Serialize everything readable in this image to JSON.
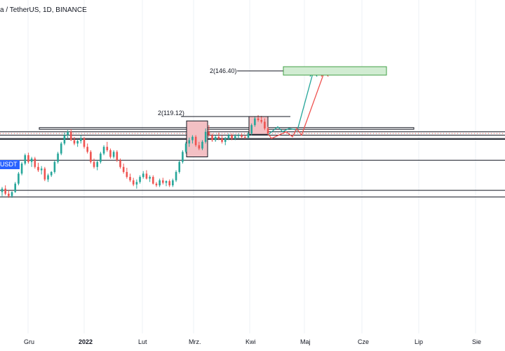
{
  "header": {
    "title": "a / TetherUS, 1D, BINANCE"
  },
  "price_tag": "USDT",
  "chart_data": {
    "type": "candlestick",
    "x_tick_labels": [
      "Gru",
      "2022",
      "Lut",
      "Mrz.",
      "Kwi",
      "Maj",
      "Cze",
      "Lip",
      "Sie"
    ],
    "y_range": [
      70,
      155
    ],
    "grid": true,
    "annotations": [
      "2(146.40)",
      "2(119.12)"
    ],
    "targets": [
      146.4,
      119.12
    ],
    "horizontal_levels": [
      110,
      108,
      106,
      105.5,
      93,
      75,
      71
    ],
    "resistance_zone": [
      111.5,
      112.5
    ],
    "candles": [
      {
        "o": 74,
        "h": 77,
        "l": 71.5,
        "c": 76
      },
      {
        "o": 76,
        "h": 78,
        "l": 72,
        "c": 73
      },
      {
        "o": 73,
        "h": 75,
        "l": 70.5,
        "c": 71.5
      },
      {
        "o": 71.5,
        "h": 74.5,
        "l": 70.5,
        "c": 74
      },
      {
        "o": 74,
        "h": 80,
        "l": 73.5,
        "c": 79
      },
      {
        "o": 79,
        "h": 86,
        "l": 78,
        "c": 85
      },
      {
        "o": 85,
        "h": 92,
        "l": 84,
        "c": 91
      },
      {
        "o": 91,
        "h": 97,
        "l": 90,
        "c": 96
      },
      {
        "o": 96,
        "h": 97.5,
        "l": 91,
        "c": 92
      },
      {
        "o": 92,
        "h": 95,
        "l": 89,
        "c": 94
      },
      {
        "o": 94,
        "h": 95,
        "l": 88,
        "c": 89
      },
      {
        "o": 89,
        "h": 91.5,
        "l": 86,
        "c": 87
      },
      {
        "o": 87,
        "h": 89.5,
        "l": 84.5,
        "c": 88
      },
      {
        "o": 88,
        "h": 89,
        "l": 80.5,
        "c": 81.5
      },
      {
        "o": 81.5,
        "h": 85,
        "l": 80,
        "c": 84
      },
      {
        "o": 84,
        "h": 86.5,
        "l": 83,
        "c": 86
      },
      {
        "o": 86,
        "h": 93,
        "l": 85,
        "c": 92
      },
      {
        "o": 92,
        "h": 98,
        "l": 91,
        "c": 97
      },
      {
        "o": 97,
        "h": 104,
        "l": 96,
        "c": 103
      },
      {
        "o": 103,
        "h": 109.5,
        "l": 102,
        "c": 108
      },
      {
        "o": 108,
        "h": 111,
        "l": 106,
        "c": 110
      },
      {
        "o": 110,
        "h": 111.5,
        "l": 104.5,
        "c": 105
      },
      {
        "o": 105,
        "h": 107,
        "l": 102,
        "c": 103
      },
      {
        "o": 103,
        "h": 105.5,
        "l": 101,
        "c": 104.5
      },
      {
        "o": 104.5,
        "h": 108,
        "l": 103,
        "c": 106
      },
      {
        "o": 106,
        "h": 107,
        "l": 100,
        "c": 101
      },
      {
        "o": 101,
        "h": 103,
        "l": 97,
        "c": 98
      },
      {
        "o": 98,
        "h": 99,
        "l": 91,
        "c": 92
      },
      {
        "o": 92,
        "h": 94,
        "l": 88,
        "c": 89
      },
      {
        "o": 89,
        "h": 93,
        "l": 87,
        "c": 92
      },
      {
        "o": 92,
        "h": 98,
        "l": 91,
        "c": 97
      },
      {
        "o": 97,
        "h": 102,
        "l": 96,
        "c": 101
      },
      {
        "o": 101,
        "h": 104,
        "l": 98,
        "c": 99
      },
      {
        "o": 99,
        "h": 100,
        "l": 94,
        "c": 95
      },
      {
        "o": 95,
        "h": 99,
        "l": 94,
        "c": 98
      },
      {
        "o": 98,
        "h": 99,
        "l": 92,
        "c": 93
      },
      {
        "o": 93,
        "h": 94,
        "l": 88,
        "c": 89
      },
      {
        "o": 89,
        "h": 91,
        "l": 85,
        "c": 86
      },
      {
        "o": 86,
        "h": 88.5,
        "l": 82,
        "c": 83
      },
      {
        "o": 83,
        "h": 85,
        "l": 80,
        "c": 81
      },
      {
        "o": 81,
        "h": 82.5,
        "l": 77.5,
        "c": 78.5
      },
      {
        "o": 78.5,
        "h": 81.5,
        "l": 76,
        "c": 80
      },
      {
        "o": 80,
        "h": 84,
        "l": 79,
        "c": 83
      },
      {
        "o": 83,
        "h": 86.5,
        "l": 82,
        "c": 85
      },
      {
        "o": 85,
        "h": 87,
        "l": 81.5,
        "c": 82
      },
      {
        "o": 82,
        "h": 84,
        "l": 80,
        "c": 83
      },
      {
        "o": 83,
        "h": 84,
        "l": 78.5,
        "c": 79
      },
      {
        "o": 79,
        "h": 80,
        "l": 77,
        "c": 78
      },
      {
        "o": 78,
        "h": 82,
        "l": 77,
        "c": 81
      },
      {
        "o": 81,
        "h": 82.5,
        "l": 78.5,
        "c": 79.5
      },
      {
        "o": 79.5,
        "h": 81,
        "l": 77.5,
        "c": 80.5
      },
      {
        "o": 80.5,
        "h": 81.5,
        "l": 77,
        "c": 78
      },
      {
        "o": 78,
        "h": 82,
        "l": 77,
        "c": 81
      },
      {
        "o": 81,
        "h": 87,
        "l": 80,
        "c": 86
      },
      {
        "o": 86,
        "h": 93,
        "l": 85,
        "c": 92
      },
      {
        "o": 92,
        "h": 99,
        "l": 91,
        "c": 98
      },
      {
        "o": 98,
        "h": 104,
        "l": 97,
        "c": 103
      },
      {
        "o": 103,
        "h": 106.5,
        "l": 101,
        "c": 105
      },
      {
        "o": 105,
        "h": 108,
        "l": 103,
        "c": 107
      },
      {
        "o": 107,
        "h": 108,
        "l": 101,
        "c": 102
      },
      {
        "o": 102,
        "h": 104,
        "l": 99,
        "c": 100
      },
      {
        "o": 100,
        "h": 105,
        "l": 99,
        "c": 104
      },
      {
        "o": 104,
        "h": 112,
        "l": 103,
        "c": 110
      },
      {
        "o": 110,
        "h": 114,
        "l": 107,
        "c": 108
      },
      {
        "o": 108,
        "h": 109,
        "l": 104,
        "c": 105
      },
      {
        "o": 105,
        "h": 108,
        "l": 104,
        "c": 107
      },
      {
        "o": 107,
        "h": 109.5,
        "l": 105,
        "c": 106
      },
      {
        "o": 106,
        "h": 108,
        "l": 103,
        "c": 104
      },
      {
        "o": 104,
        "h": 107,
        "l": 102,
        "c": 106
      },
      {
        "o": 106,
        "h": 109,
        "l": 105,
        "c": 108
      },
      {
        "o": 108,
        "h": 109,
        "l": 105,
        "c": 106
      },
      {
        "o": 106,
        "h": 108.5,
        "l": 105,
        "c": 107.5
      },
      {
        "o": 107.5,
        "h": 109,
        "l": 106,
        "c": 108
      },
      {
        "o": 108,
        "h": 109,
        "l": 106,
        "c": 107
      },
      {
        "o": 107,
        "h": 108,
        "l": 106,
        "c": 106.5
      },
      {
        "o": 106.5,
        "h": 110,
        "l": 106,
        "c": 109
      },
      {
        "o": 109,
        "h": 115,
        "l": 108,
        "c": 114
      },
      {
        "o": 114,
        "h": 119,
        "l": 113,
        "c": 118
      },
      {
        "o": 118,
        "h": 120,
        "l": 116,
        "c": 117
      },
      {
        "o": 117,
        "h": 119.5,
        "l": 115,
        "c": 116
      },
      {
        "o": 116,
        "h": 118,
        "l": 111,
        "c": 112
      },
      {
        "o": 112,
        "h": 113,
        "l": 108,
        "c": 109
      }
    ]
  },
  "colors": {
    "bull": "#26a69a",
    "bear": "#ef5350",
    "zone_fill": "#f3c0c4",
    "target_fill": "#d1ecd2",
    "target_stroke": "#43a047",
    "green_path": "#26a69a",
    "red_path": "#ef5350",
    "grid": "#eef0f4",
    "axis_text": "#131722"
  }
}
